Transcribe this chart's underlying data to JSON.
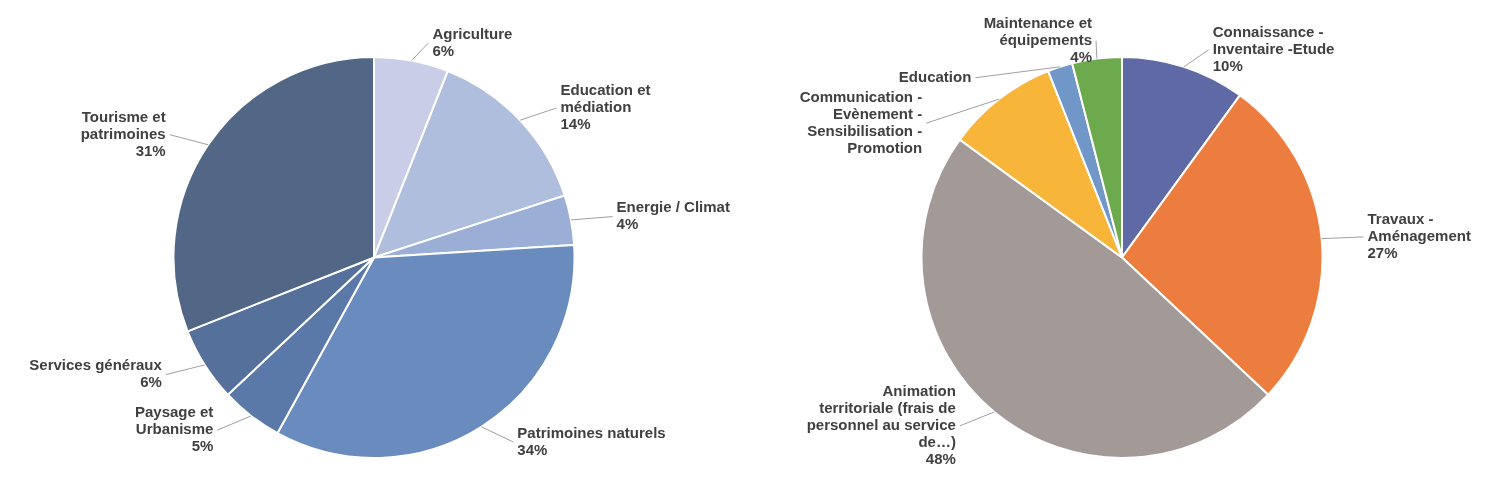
{
  "chart_data": [
    {
      "type": "pie",
      "categories": [
        "Agriculture",
        "Education et médiation",
        "Energie / Climat",
        "Patrimoines naturels",
        "Paysage et Urbanisme",
        "Services généraux",
        "Tourisme et patrimoines"
      ],
      "values": [
        6,
        14,
        4,
        34,
        5,
        6,
        31
      ],
      "colors": [
        "#c9cde8",
        "#b0bedd",
        "#9aaed6",
        "#6a8bbd",
        "#5a78a8",
        "#56709c",
        "#526785"
      ],
      "value_labels": [
        "6%",
        "14%",
        "4%",
        "34%",
        "5%",
        "6%",
        "31%"
      ]
    },
    {
      "type": "pie",
      "categories": [
        "Connaissance - Inventaire -Etude",
        "Travaux - Aménagement",
        "Animation territoriale (frais de personnel au service de…)",
        "Communication - Evènement - Sensibilisation - Promotion",
        "Education",
        "Maintenance et équipements"
      ],
      "values": [
        10,
        27,
        48,
        9,
        2,
        4
      ],
      "colors": [
        "#5e69a5",
        "#ed7d3e",
        "#a39a97",
        "#f7b53a",
        "#7196c8",
        "#6daa4e"
      ],
      "value_labels": [
        "10%",
        "27%",
        "48%",
        null,
        null,
        "4%"
      ]
    }
  ]
}
